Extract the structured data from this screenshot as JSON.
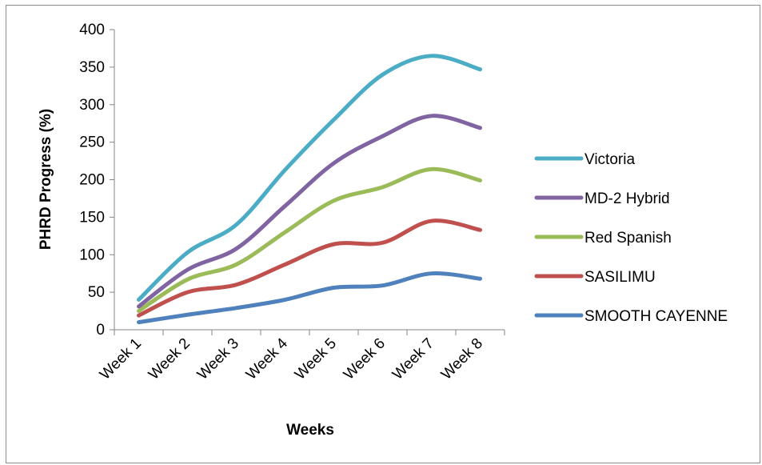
{
  "chart_data": {
    "type": "line",
    "xlabel": "Weeks",
    "ylabel": "PHRD Progress (%)",
    "ylim": [
      0,
      400
    ],
    "yticks": [
      0,
      50,
      100,
      150,
      200,
      250,
      300,
      350,
      400
    ],
    "categories": [
      "Week 1",
      "Week 2",
      "Week 3",
      "Week 4",
      "Week 5",
      "Week 6",
      "Week 7",
      "Week 8"
    ],
    "grid": false,
    "legend_position": "right",
    "series": [
      {
        "name": "Victoria",
        "color": "#4BACC6",
        "values": [
          40,
          103,
          140,
          213,
          280,
          340,
          365,
          347
        ]
      },
      {
        "name": "MD-2 Hybrid",
        "color": "#8064A2",
        "values": [
          31,
          80,
          108,
          165,
          222,
          258,
          285,
          269
        ]
      },
      {
        "name": "Red Spanish",
        "color": "#9BBB59",
        "values": [
          25,
          67,
          87,
          130,
          172,
          190,
          214,
          199
        ]
      },
      {
        "name": "SASILIMU",
        "color": "#C0504D",
        "values": [
          19,
          50,
          60,
          87,
          114,
          116,
          145,
          133
        ]
      },
      {
        "name": "SMOOTH CAYENNE",
        "color": "#4F81BD",
        "values": [
          10,
          20,
          29,
          40,
          56,
          59,
          75,
          68
        ]
      }
    ]
  }
}
